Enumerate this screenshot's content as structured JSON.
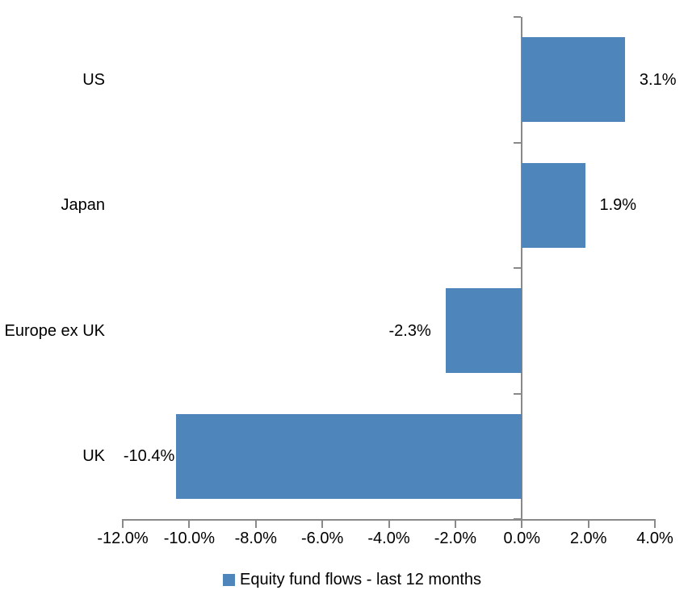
{
  "chart_data": {
    "type": "bar",
    "orientation": "horizontal",
    "title": "",
    "xlabel": "",
    "ylabel": "",
    "series_name": "Equity fund flows - last 12 months",
    "categories": [
      "US",
      "Japan",
      "Europe ex UK",
      "UK"
    ],
    "values": [
      3.1,
      1.9,
      -2.3,
      -10.4
    ],
    "data_labels": [
      "3.1%",
      "1.9%",
      "-2.3%",
      "-10.4%"
    ],
    "xlim": [
      -12,
      4
    ],
    "x_tick_labels": [
      "-12.0%",
      "-10.0%",
      "-8.0%",
      "-6.0%",
      "-4.0%",
      "-2.0%",
      "0.0%",
      "2.0%",
      "4.0%"
    ],
    "grid": false,
    "legend_position": "bottom",
    "colors": {
      "bar": "#4E86BB",
      "axis": "#898989",
      "text": "#000000",
      "background": "#FFFFFF"
    }
  }
}
